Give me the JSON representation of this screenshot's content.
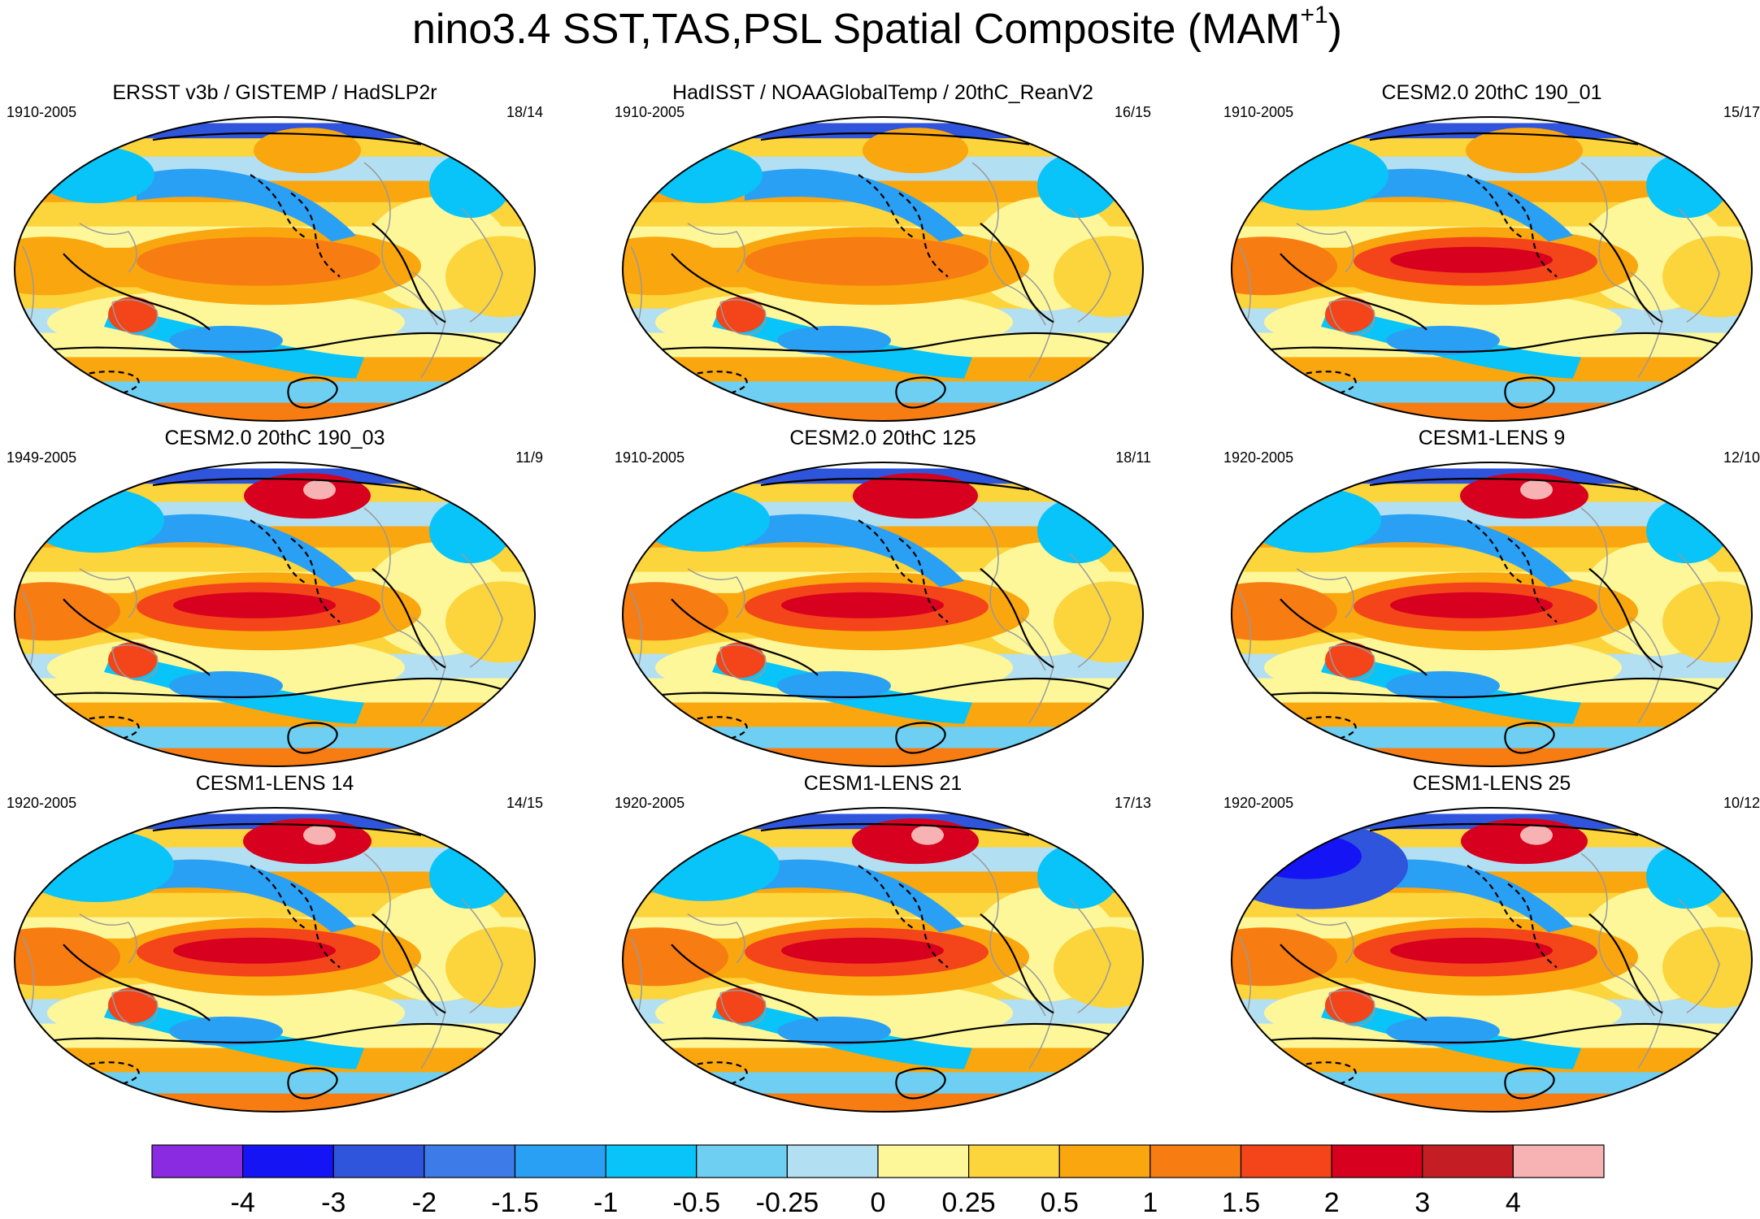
{
  "title": {
    "main": "nino3.4 SST,TAS,PSL Spatial Composite (MAM",
    "superscript": "+1",
    "close": ")"
  },
  "panels": [
    {
      "title": "ERSST v3b / GISTEMP / HadSLP2r",
      "years": "1910-2005",
      "count": "18/14",
      "intensity": 0.6,
      "amoc": 0.2,
      "npac": 0.3
    },
    {
      "title": "HadISST / NOAAGlobalTemp / 20thC_ReanV2",
      "years": "1910-2005",
      "count": "16/15",
      "intensity": 0.55,
      "amoc": 0.2,
      "npac": 0.25
    },
    {
      "title": "CESM2.0 20thC 190_01",
      "years": "1910-2005",
      "count": "15/17",
      "intensity": 0.95,
      "amoc": 0.55,
      "npac": 0.6
    },
    {
      "title": "CESM2.0 20thC 190_03",
      "years": "1949-2005",
      "count": "11/9",
      "intensity": 1.0,
      "amoc": 0.4,
      "npac": 0.9
    },
    {
      "title": "CESM2.0 20thC 125",
      "years": "1910-2005",
      "count": "18/11",
      "intensity": 1.0,
      "amoc": 0.35,
      "npac": 0.85
    },
    {
      "title": "CESM1-LENS 9",
      "years": "1920-2005",
      "count": "12/10",
      "intensity": 1.0,
      "amoc": 0.4,
      "npac": 0.95
    },
    {
      "title": "CESM1-LENS 14",
      "years": "1920-2005",
      "count": "14/15",
      "intensity": 1.0,
      "amoc": 0.6,
      "npac": 0.95
    },
    {
      "title": "CESM1-LENS 21",
      "years": "1920-2005",
      "count": "17/13",
      "intensity": 1.0,
      "amoc": 0.55,
      "npac": 0.9
    },
    {
      "title": "CESM1-LENS 25",
      "years": "1920-2005",
      "count": "10/12",
      "intensity": 1.0,
      "amoc": 0.95,
      "npac": 0.9
    }
  ],
  "chart_data": {
    "type": "heatmap",
    "title": "nino3.4 SST,TAS,PSL Spatial Composite (MAM+1)",
    "field": "SST / TAS shading with PSL contours (dashed = negative)",
    "colorbar": {
      "levels": [
        "-4",
        "-3",
        "-2",
        "-1.5",
        "-1",
        "-0.5",
        "-0.25",
        "0",
        "0.25",
        "0.5",
        "1",
        "1.5",
        "2",
        "3",
        "4"
      ],
      "colors": [
        "#8a2be2",
        "#1414f5",
        "#2f55dc",
        "#3c7be8",
        "#2aa0f5",
        "#08c4f8",
        "#6ecff2",
        "#b3dff3",
        "#fdf79a",
        "#fcd43c",
        "#faa60e",
        "#f77c12",
        "#f3441a",
        "#d7001e",
        "#c41e24",
        "#f7b3b3"
      ]
    }
  }
}
